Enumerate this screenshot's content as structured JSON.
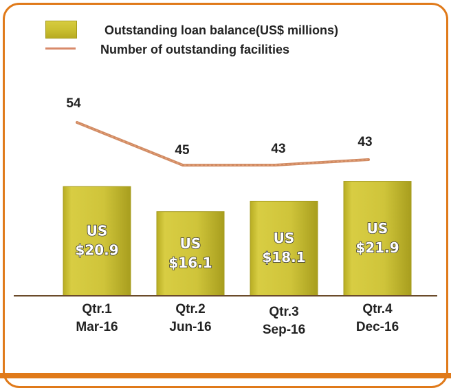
{
  "colors": {
    "frame": "#e07a1a",
    "bar": "#cfc43a",
    "bar_dark": "#a59b1d",
    "line": "#d08a62",
    "baseline": "#6a4a2a"
  },
  "legend": {
    "bar_label": "Outstanding loan balance(US$ millions)",
    "line_label": "Number of outstanding facilities"
  },
  "chart_data": {
    "type": "bar",
    "categories": [
      "Qtr.1 Mar-16",
      "Qtr.2 Jun-16",
      "Qtr.3 Sep-16",
      "Qtr.4 Dec-16"
    ],
    "category_lines": [
      [
        "Qtr.1",
        "Mar-16"
      ],
      [
        "Qtr.2",
        "Jun-16"
      ],
      [
        "Qtr.3",
        "Sep-16"
      ],
      [
        "Qtr.4",
        "Dec-16"
      ]
    ],
    "series": [
      {
        "name": "Outstanding loan balance(US$ millions)",
        "type": "bar",
        "values": [
          20.9,
          16.1,
          18.1,
          21.9
        ],
        "labels": [
          [
            "US",
            "$20.9"
          ],
          [
            "US",
            "$16.1"
          ],
          [
            "US",
            "$18.1"
          ],
          [
            "US",
            "$21.9"
          ]
        ]
      },
      {
        "name": "Number of outstanding facilities",
        "type": "line",
        "values": [
          54,
          45,
          43,
          43
        ],
        "labels": [
          "54",
          "45",
          "43",
          "43"
        ]
      }
    ],
    "grid": false,
    "legend_position": "top"
  }
}
